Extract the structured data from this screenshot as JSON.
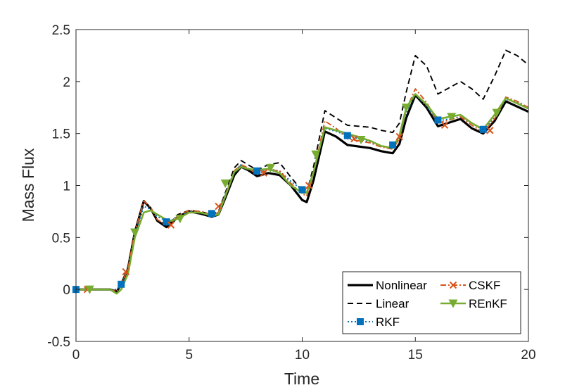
{
  "chart_data": {
    "type": "line",
    "xlabel": "Time",
    "ylabel": "Mass Flux",
    "xlim": [
      0,
      20
    ],
    "ylim": [
      -0.5,
      2.5
    ],
    "xticks": [
      "0",
      "5",
      "10",
      "15",
      "20"
    ],
    "yticks": [
      "-0.5",
      "0",
      "0.5",
      "1",
      "1.5",
      "2",
      "2.5"
    ],
    "grid": false,
    "legend_position": "bottom-right",
    "series": [
      {
        "name": "Nonlinear",
        "color": "#000000",
        "style": "solid",
        "marker": "none",
        "x": [
          0,
          0.5,
          1,
          1.5,
          1.8,
          2,
          2.3,
          2.6,
          3,
          3.3,
          3.6,
          4,
          4.2,
          4.5,
          5,
          5.5,
          6,
          6.3,
          6.6,
          7,
          7.3,
          7.6,
          8,
          8.5,
          9,
          9.5,
          10,
          10.2,
          10.5,
          11,
          11.5,
          12,
          13,
          13.5,
          14,
          14.3,
          14.6,
          15,
          15.5,
          16,
          17,
          17.5,
          18,
          18.5,
          19,
          19.5,
          20
        ],
        "y": [
          0,
          0,
          0,
          0,
          -0.02,
          0.05,
          0.2,
          0.55,
          0.85,
          0.78,
          0.66,
          0.6,
          0.63,
          0.7,
          0.75,
          0.73,
          0.7,
          0.72,
          0.88,
          1.1,
          1.18,
          1.15,
          1.09,
          1.12,
          1.1,
          1.0,
          0.86,
          0.84,
          1.05,
          1.52,
          1.47,
          1.39,
          1.36,
          1.33,
          1.31,
          1.4,
          1.65,
          1.87,
          1.75,
          1.57,
          1.64,
          1.55,
          1.5,
          1.62,
          1.81,
          1.76,
          1.71
        ]
      },
      {
        "name": "Linear",
        "color": "#000000",
        "style": "dashed",
        "marker": "none",
        "x": [
          0,
          0.5,
          1,
          1.5,
          1.8,
          2,
          2.3,
          2.6,
          3,
          3.3,
          3.6,
          4,
          4.2,
          4.5,
          5,
          5.5,
          6,
          6.3,
          6.6,
          7,
          7.3,
          7.6,
          8,
          8.5,
          9,
          9.5,
          10,
          10.2,
          10.5,
          11,
          11.5,
          12,
          13,
          13.5,
          14,
          14.3,
          14.6,
          15,
          15.5,
          16,
          17,
          17.5,
          18,
          18.5,
          19,
          19.5,
          20
        ],
        "y": [
          0,
          0,
          0,
          0,
          -0.02,
          0.05,
          0.2,
          0.55,
          0.85,
          0.78,
          0.67,
          0.62,
          0.65,
          0.72,
          0.76,
          0.75,
          0.72,
          0.75,
          0.93,
          1.17,
          1.24,
          1.2,
          1.15,
          1.2,
          1.22,
          1.08,
          0.95,
          0.93,
          1.18,
          1.72,
          1.65,
          1.58,
          1.56,
          1.53,
          1.51,
          1.6,
          1.9,
          2.25,
          2.15,
          1.88,
          2.0,
          1.93,
          1.83,
          2.05,
          2.3,
          2.25,
          2.16
        ]
      },
      {
        "name": "RKF",
        "color": "#0072BD",
        "style": "dotted",
        "marker": "square",
        "x": [
          0,
          0.5,
          1,
          1.5,
          1.8,
          2,
          2.3,
          2.6,
          3,
          3.3,
          3.6,
          4,
          4.2,
          4.5,
          5,
          5.5,
          6,
          6.3,
          6.6,
          7,
          7.3,
          7.6,
          8,
          8.5,
          9,
          9.5,
          10,
          10.2,
          10.5,
          11,
          11.5,
          12,
          13,
          13.5,
          14,
          14.3,
          14.6,
          15,
          15.5,
          16,
          17,
          17.5,
          18,
          18.5,
          19,
          19.5,
          20
        ],
        "y": [
          0,
          0,
          0,
          0,
          0,
          0.05,
          0.2,
          0.52,
          0.8,
          0.77,
          0.7,
          0.66,
          0.66,
          0.71,
          0.75,
          0.74,
          0.72,
          0.74,
          0.92,
          1.14,
          1.2,
          1.16,
          1.13,
          1.16,
          1.14,
          1.04,
          0.96,
          0.96,
          1.12,
          1.55,
          1.52,
          1.48,
          1.42,
          1.38,
          1.36,
          1.46,
          1.7,
          1.88,
          1.76,
          1.62,
          1.66,
          1.6,
          1.53,
          1.65,
          1.83,
          1.8,
          1.75
        ],
        "markers_x": [
          0,
          2,
          4,
          6,
          8,
          10,
          12,
          14,
          16,
          18
        ],
        "markers_y": [
          0,
          0.05,
          0.65,
          0.73,
          1.14,
          0.96,
          1.48,
          1.39,
          1.63,
          1.54
        ]
      },
      {
        "name": "CSKF",
        "color": "#D95319",
        "style": "dashdot",
        "marker": "x",
        "x": [
          0,
          0.5,
          1,
          1.5,
          1.8,
          2,
          2.3,
          2.6,
          3,
          3.3,
          3.6,
          4,
          4.2,
          4.5,
          5,
          5.5,
          6,
          6.3,
          6.6,
          7,
          7.3,
          7.6,
          8,
          8.5,
          9,
          9.5,
          10,
          10.2,
          10.5,
          11,
          11.5,
          12,
          13,
          13.5,
          14,
          14.3,
          14.6,
          15,
          15.5,
          16,
          17,
          17.5,
          18,
          18.5,
          19,
          19.5,
          20
        ],
        "y": [
          0,
          0,
          0,
          0,
          -0.02,
          0.05,
          0.2,
          0.55,
          0.85,
          0.79,
          0.67,
          0.62,
          0.64,
          0.71,
          0.76,
          0.75,
          0.72,
          0.74,
          0.91,
          1.14,
          1.2,
          1.17,
          1.11,
          1.15,
          1.14,
          1.02,
          0.92,
          0.9,
          1.12,
          1.62,
          1.55,
          1.45,
          1.41,
          1.37,
          1.35,
          1.45,
          1.73,
          1.93,
          1.8,
          1.6,
          1.66,
          1.58,
          1.51,
          1.64,
          1.85,
          1.81,
          1.75
        ],
        "markers_x": [
          0.5,
          2.2,
          4.2,
          6.3,
          8.3,
          10.3,
          12.3,
          14.3,
          16.3,
          18.3
        ],
        "markers_y": [
          0,
          0.17,
          0.62,
          0.8,
          1.12,
          1.0,
          1.45,
          1.47,
          1.58,
          1.53
        ]
      },
      {
        "name": "REnKF",
        "color": "#77AC30",
        "style": "solid",
        "marker": "triangle-down",
        "x": [
          0,
          0.5,
          1,
          1.5,
          1.8,
          2,
          2.3,
          2.6,
          3,
          3.3,
          3.6,
          4,
          4.2,
          4.5,
          5,
          5.5,
          6,
          6.3,
          6.6,
          7,
          7.3,
          7.6,
          8,
          8.5,
          9,
          9.5,
          10,
          10.2,
          10.5,
          11,
          11.5,
          12,
          13,
          13.5,
          14,
          14.3,
          14.6,
          15,
          15.5,
          16,
          17,
          17.5,
          18,
          18.5,
          19,
          19.5,
          20
        ],
        "y": [
          0,
          0,
          0,
          0,
          -0.04,
          0.0,
          0.15,
          0.5,
          0.74,
          0.76,
          0.72,
          0.67,
          0.66,
          0.68,
          0.74,
          0.74,
          0.71,
          0.72,
          0.9,
          1.13,
          1.18,
          1.16,
          1.15,
          1.16,
          1.12,
          1.0,
          0.93,
          0.93,
          1.13,
          1.56,
          1.53,
          1.5,
          1.43,
          1.38,
          1.36,
          1.48,
          1.75,
          1.88,
          1.78,
          1.64,
          1.68,
          1.6,
          1.54,
          1.68,
          1.84,
          1.79,
          1.74
        ],
        "markers_x": [
          0.6,
          2.6,
          4.6,
          6.6,
          8.6,
          10.6,
          12.6,
          14.6,
          16.6,
          18.6
        ],
        "markers_y": [
          0,
          0.55,
          0.68,
          1.02,
          1.17,
          1.3,
          1.44,
          1.75,
          1.66,
          1.7
        ]
      }
    ]
  }
}
